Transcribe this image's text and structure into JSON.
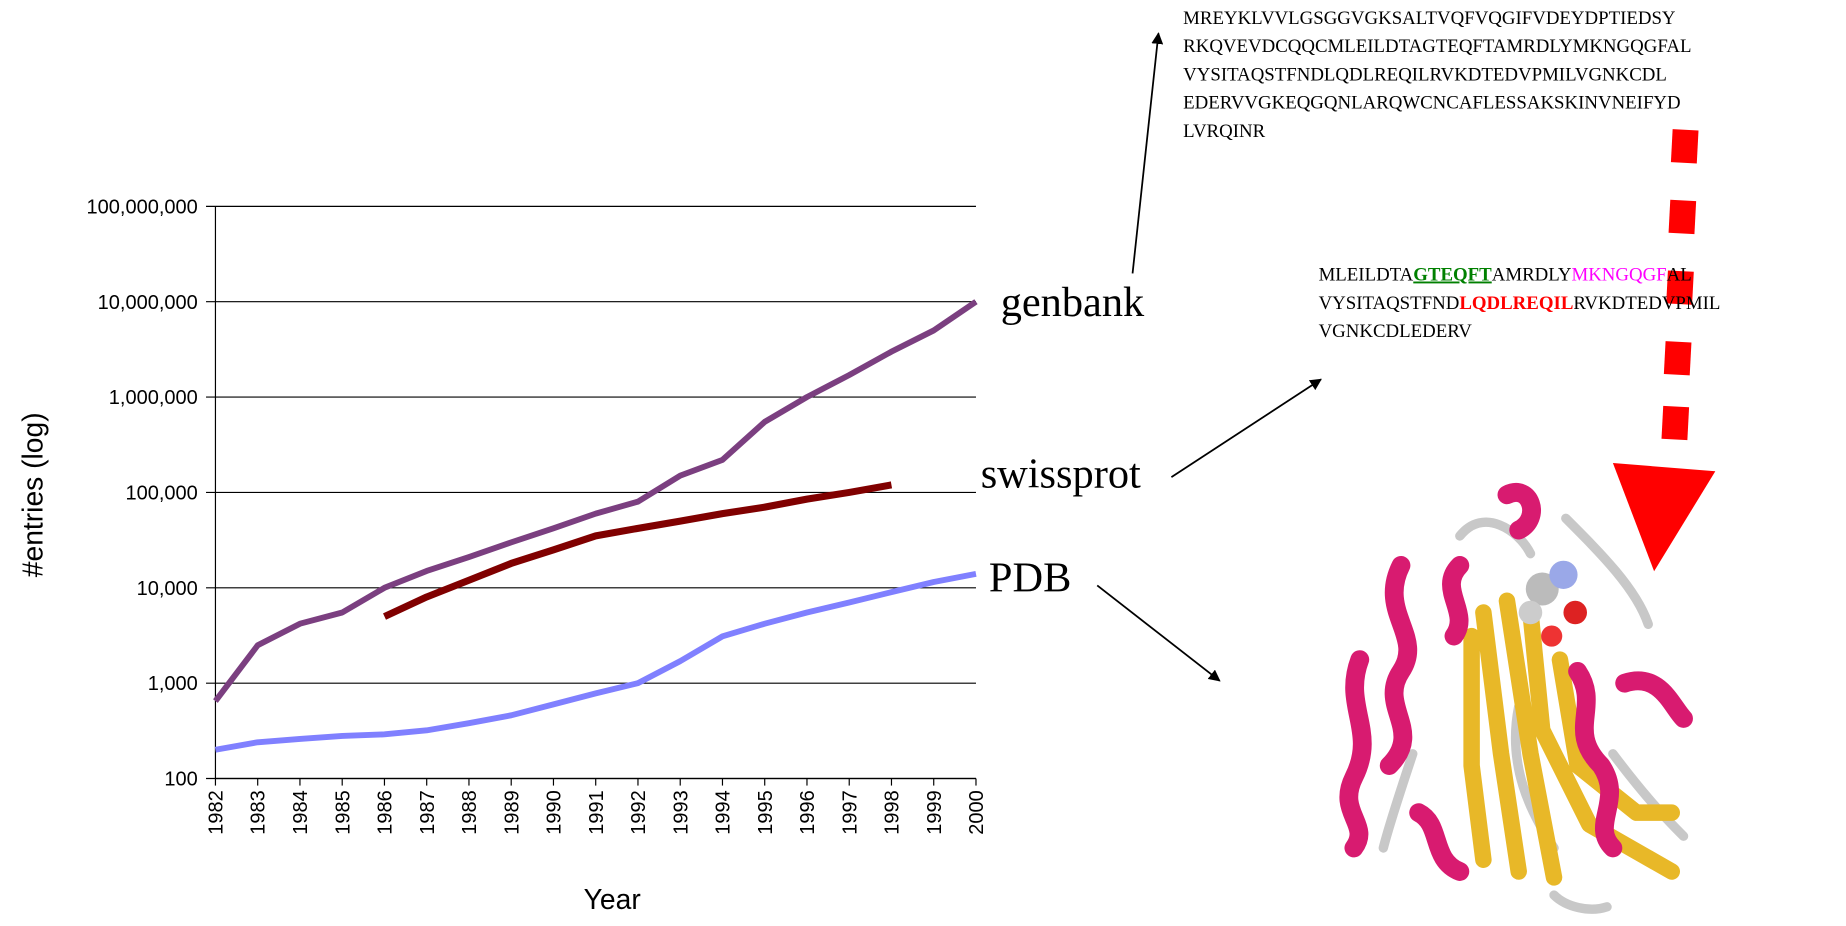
{
  "chart_data": {
    "type": "line",
    "ylabel": "#entries (log)",
    "xlabel": "Year",
    "x": [
      1982,
      1983,
      1984,
      1985,
      1986,
      1987,
      1988,
      1989,
      1990,
      1991,
      1992,
      1993,
      1994,
      1995,
      1996,
      1997,
      1998,
      1999,
      2000
    ],
    "xlim": [
      1982,
      2000
    ],
    "xticks": [
      1982,
      1983,
      1984,
      1985,
      1986,
      1987,
      1988,
      1989,
      1990,
      1991,
      1992,
      1993,
      1994,
      1995,
      1996,
      1997,
      1998,
      1999,
      2000
    ],
    "ylim": [
      100,
      100000000
    ],
    "log_y": true,
    "grid": true,
    "yticks": [
      {
        "value": 100,
        "label": "100"
      },
      {
        "value": 1000,
        "label": "1,000"
      },
      {
        "value": 10000,
        "label": "10,000"
      },
      {
        "value": 100000,
        "label": "100,000"
      },
      {
        "value": 1000000,
        "label": "1,000,000"
      },
      {
        "value": 10000000,
        "label": "10,000,000"
      },
      {
        "value": 100000000,
        "label": "100,000,000"
      }
    ],
    "series": [
      {
        "name": "genbank",
        "color": "#7b3f80",
        "values": [
          650,
          2500,
          4200,
          5500,
          10000,
          15000,
          21000,
          30000,
          42000,
          60000,
          80000,
          150000,
          220000,
          550000,
          1000000,
          1700000,
          3000000,
          5000000,
          10000000
        ]
      },
      {
        "name": "swissprot",
        "color": "#800000",
        "values": [
          null,
          null,
          null,
          null,
          5000,
          8000,
          12000,
          18000,
          25000,
          35000,
          42000,
          50000,
          60000,
          70000,
          85000,
          100000,
          120000,
          null,
          null
        ]
      },
      {
        "name": "PDB",
        "color": "#8080ff",
        "values": [
          200,
          240,
          260,
          280,
          290,
          320,
          380,
          460,
          600,
          780,
          1000,
          1700,
          3100,
          4200,
          5500,
          7000,
          9000,
          11500,
          14000
        ]
      }
    ]
  },
  "sequences": {
    "full": [
      "MREYKLVVLGSGGVGKSALTVQFVQGIFVDEYDPTIEDSY",
      "RKQVEVDCQQCMLEILDTAGTEQFTAMRDLYMKNGQGFAL",
      "VYSITAQSTFNDLQDLREQILRVKDTEDVPMILVGNKCDL",
      "EDERVVGKEQGQNLARQWCNCAFLESSAKSKINVNEIFYD",
      "LVRQINR"
    ],
    "fragment": [
      [
        "MLEILDTA",
        "GTEQFT",
        "AMRDLY",
        "MKNGQGF",
        "AL"
      ],
      [
        "VYSITAQSTFND",
        "LQDLREQIL",
        "RVKDTEDVPMIL"
      ],
      [
        "VGNKCDLEDERV"
      ]
    ]
  }
}
